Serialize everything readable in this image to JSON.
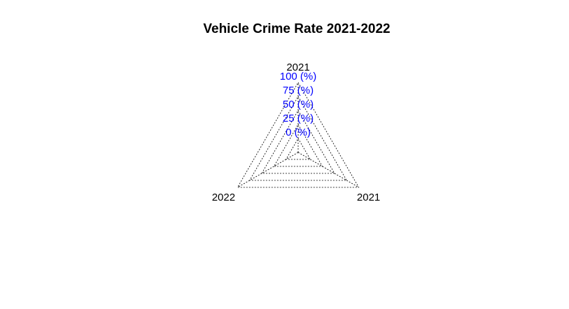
{
  "chart_data": {
    "type": "radar",
    "title": "Vehicle Crime Rate 2021-2022",
    "axes": [
      "2021",
      "2021",
      "2022"
    ],
    "rings": [
      {
        "value": 0,
        "label": "0 (%)"
      },
      {
        "value": 25,
        "label": "25 (%)"
      },
      {
        "value": 50,
        "label": "50 (%)"
      },
      {
        "value": 75,
        "label": "75 (%)"
      },
      {
        "value": 100,
        "label": "100 (%)"
      }
    ],
    "range": [
      0,
      100
    ],
    "grid_color": "#000000",
    "ring_label_color": "#0000ff",
    "series": []
  }
}
